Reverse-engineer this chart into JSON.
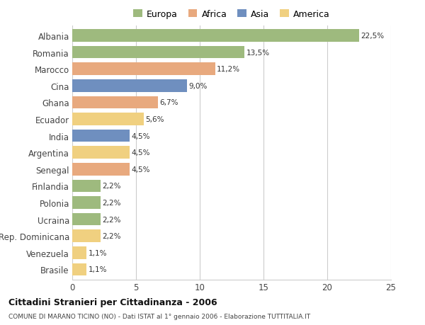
{
  "categories": [
    "Albania",
    "Romania",
    "Marocco",
    "Cina",
    "Ghana",
    "Ecuador",
    "India",
    "Argentina",
    "Senegal",
    "Finlandia",
    "Polonia",
    "Ucraina",
    "Rep. Dominicana",
    "Venezuela",
    "Brasile"
  ],
  "values": [
    22.5,
    13.5,
    11.2,
    9.0,
    6.7,
    5.6,
    4.5,
    4.5,
    4.5,
    2.2,
    2.2,
    2.2,
    2.2,
    1.1,
    1.1
  ],
  "labels": [
    "22,5%",
    "13,5%",
    "11,2%",
    "9,0%",
    "6,7%",
    "5,6%",
    "4,5%",
    "4,5%",
    "4,5%",
    "2,2%",
    "2,2%",
    "2,2%",
    "2,2%",
    "1,1%",
    "1,1%"
  ],
  "bar_colors": [
    "#9eba7e",
    "#9eba7e",
    "#e8a97e",
    "#6f8fbf",
    "#e8a97e",
    "#f0d080",
    "#6f8fbf",
    "#f0d080",
    "#e8a97e",
    "#9eba7e",
    "#9eba7e",
    "#9eba7e",
    "#f0d080",
    "#f0d080",
    "#f0d080"
  ],
  "legend_labels": [
    "Europa",
    "Africa",
    "Asia",
    "America"
  ],
  "legend_colors": [
    "#9eba7e",
    "#e8a97e",
    "#6f8fbf",
    "#f0d080"
  ],
  "title": "Cittadini Stranieri per Cittadinanza - 2006",
  "subtitle": "COMUNE DI MARANO TICINO (NO) - Dati ISTAT al 1° gennaio 2006 - Elaborazione TUTTITALIA.IT",
  "xlim": [
    0,
    25
  ],
  "xticks": [
    0,
    5,
    10,
    15,
    20,
    25
  ],
  "background_color": "#ffffff",
  "grid_color": "#cccccc",
  "bar_height": 0.75
}
